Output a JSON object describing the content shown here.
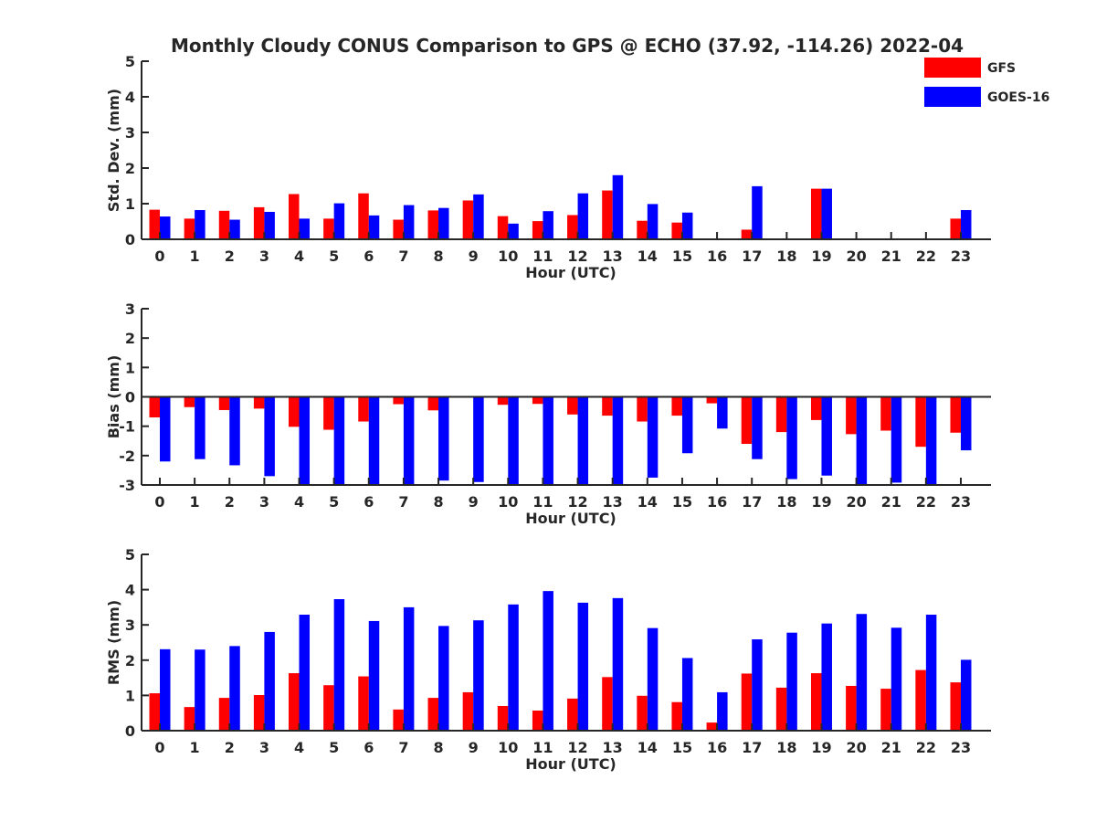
{
  "title": "Monthly Cloudy CONUS Comparison to GPS @ ECHO (37.92, -114.26) 2022-04",
  "legend": {
    "placement": "top-right",
    "items": [
      {
        "name": "GFS",
        "color": "#ff0000"
      },
      {
        "name": "GOES-16",
        "color": "#0000ff"
      }
    ]
  },
  "chart_data": [
    {
      "type": "bar",
      "xlabel": "Hour (UTC)",
      "ylabel": "Std. Dev. (mm)",
      "ylim": [
        0,
        5
      ],
      "yticks": [
        0,
        1,
        2,
        3,
        4,
        5
      ],
      "categories": [
        "0",
        "1",
        "2",
        "3",
        "4",
        "5",
        "6",
        "7",
        "8",
        "9",
        "10",
        "11",
        "12",
        "13",
        "14",
        "15",
        "16",
        "17",
        "18",
        "19",
        "20",
        "21",
        "22",
        "23"
      ],
      "series": [
        {
          "name": "GFS",
          "color": "#ff0000",
          "values": [
            0.83,
            0.58,
            0.8,
            0.9,
            1.27,
            0.58,
            1.29,
            0.55,
            0.81,
            1.09,
            0.65,
            0.51,
            0.68,
            1.37,
            0.52,
            0.47,
            0,
            0.27,
            0,
            1.42,
            0,
            0,
            0,
            0.58
          ]
        },
        {
          "name": "GOES-16",
          "color": "#0000ff",
          "values": [
            0.64,
            0.82,
            0.55,
            0.77,
            0.58,
            1.01,
            0.67,
            0.96,
            0.88,
            1.26,
            0.44,
            0.79,
            1.29,
            1.8,
            0.99,
            0.75,
            0,
            1.49,
            0,
            1.42,
            0,
            0,
            0,
            0.82
          ]
        }
      ]
    },
    {
      "type": "bar",
      "xlabel": "Hour (UTC)",
      "ylabel": "Bias (mm)",
      "ylim": [
        -3,
        3
      ],
      "yticks": [
        -3,
        -2,
        -1,
        0,
        1,
        2,
        3
      ],
      "categories": [
        "0",
        "1",
        "2",
        "3",
        "4",
        "5",
        "6",
        "7",
        "8",
        "9",
        "10",
        "11",
        "12",
        "13",
        "14",
        "15",
        "16",
        "17",
        "18",
        "19",
        "20",
        "21",
        "22",
        "23"
      ],
      "series": [
        {
          "name": "GFS",
          "color": "#ff0000",
          "values": [
            -0.7,
            -0.35,
            -0.45,
            -0.4,
            -1.02,
            -1.12,
            -0.84,
            -0.25,
            -0.46,
            0,
            -0.27,
            -0.24,
            -0.6,
            -0.64,
            -0.84,
            -0.64,
            -0.22,
            -1.6,
            -1.2,
            -0.79,
            -1.27,
            -1.15,
            -1.7,
            -1.22
          ]
        },
        {
          "name": "GOES-16",
          "color": "#0000ff",
          "values": [
            -2.2,
            -2.12,
            -2.33,
            -2.7,
            -3.0,
            -3.0,
            -3.0,
            -3.0,
            -2.85,
            -2.9,
            -3.0,
            -3.0,
            -3.0,
            -3.0,
            -2.75,
            -1.92,
            -1.08,
            -2.12,
            -2.8,
            -2.68,
            -3.0,
            -2.92,
            -3.0,
            -1.82
          ]
        }
      ]
    },
    {
      "type": "bar",
      "xlabel": "Hour (UTC)",
      "ylabel": "RMS (mm)",
      "ylim": [
        0,
        5
      ],
      "yticks": [
        0,
        1,
        2,
        3,
        4,
        5
      ],
      "categories": [
        "0",
        "1",
        "2",
        "3",
        "4",
        "5",
        "6",
        "7",
        "8",
        "9",
        "10",
        "11",
        "12",
        "13",
        "14",
        "15",
        "16",
        "17",
        "18",
        "19",
        "20",
        "21",
        "22",
        "23"
      ],
      "series": [
        {
          "name": "GFS",
          "color": "#ff0000",
          "values": [
            1.06,
            0.67,
            0.93,
            1.01,
            1.63,
            1.29,
            1.54,
            0.6,
            0.93,
            1.09,
            0.7,
            0.57,
            0.91,
            1.52,
            0.99,
            0.81,
            0.23,
            1.62,
            1.22,
            1.63,
            1.27,
            1.19,
            1.72,
            1.37
          ]
        },
        {
          "name": "GOES-16",
          "color": "#0000ff",
          "values": [
            2.31,
            2.3,
            2.4,
            2.8,
            3.29,
            3.73,
            3.11,
            3.5,
            2.97,
            3.13,
            3.58,
            3.96,
            3.63,
            3.76,
            2.91,
            2.06,
            1.09,
            2.59,
            2.78,
            3.04,
            3.31,
            2.92,
            3.29,
            2.01
          ]
        }
      ]
    }
  ]
}
